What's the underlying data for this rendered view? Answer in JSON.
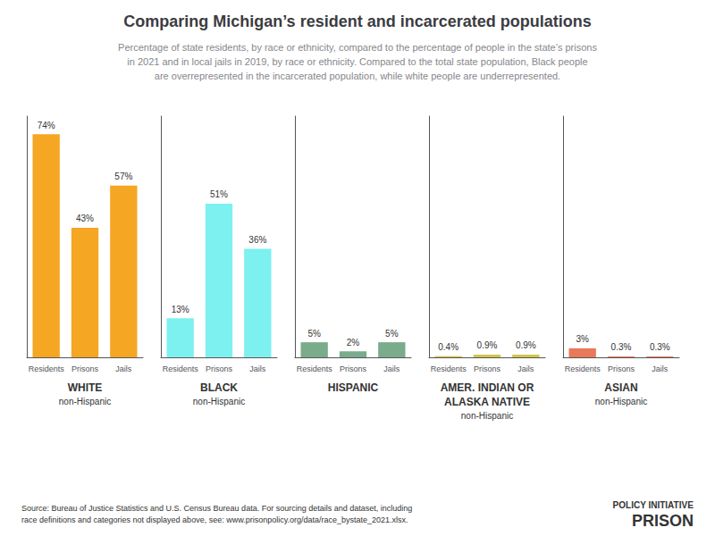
{
  "chart_data": {
    "type": "bar",
    "title": "Comparing Michigan’s resident and incarcerated populations",
    "subtitle": "Percentage of state residents, by race or ethnicity, compared to the percentage of people in the state’s prisons\nin 2021 and in local jails in 2019, by race or ethnicity. Compared to the total state population, Black people\nare overrepresented in the incarcerated population, while white people are underrepresented.",
    "annotations": [
      "Source: Bureau of Justice Statistics and U.S. Census Bureau data. For sourcing details and dataset, including\nrace definitions and categories not displayed above, see: www.prisonpolicy.org/data/race_bystate_2021.xlsx.",
      "PRISON",
      "POLICY INITIATIVE"
    ],
    "categories": [
      "Residents",
      "Prisons",
      "Jails"
    ],
    "series": [
      {
        "name": "WHITE",
        "sublabel": "non-Hispanic",
        "color": "#f5a623",
        "values": [
          74,
          43,
          57
        ],
        "value_labels": [
          "74%",
          "43%",
          "57%"
        ]
      },
      {
        "name": "BLACK",
        "sublabel": "non-Hispanic",
        "color": "#7df0f0",
        "values": [
          13,
          51,
          36
        ],
        "value_labels": [
          "13%",
          "51%",
          "36%"
        ]
      },
      {
        "name": "HISPANIC",
        "color": "#7aab8a",
        "values": [
          5,
          2,
          5
        ],
        "value_labels": [
          "5%",
          "2%",
          "5%"
        ]
      },
      {
        "name": "AMER. INDIAN OR\nALASKA NATIVE",
        "sublabel": "non-Hispanic",
        "color": "#d4c44a",
        "values": [
          0.4,
          0.9,
          0.9
        ],
        "value_labels": [
          "0.4%",
          "0.9%",
          "0.9%"
        ]
      },
      {
        "name": "ASIAN",
        "sublabel": "non-Hispanic",
        "color": "#e8795a",
        "values": [
          3,
          0.3,
          0.3
        ],
        "value_labels": [
          "3%",
          "0.3%",
          "0.3%"
        ]
      }
    ],
    "ylim": [
      0,
      80
    ],
    "data_labels": true,
    "tick_labels": "x",
    "grid": false
  }
}
